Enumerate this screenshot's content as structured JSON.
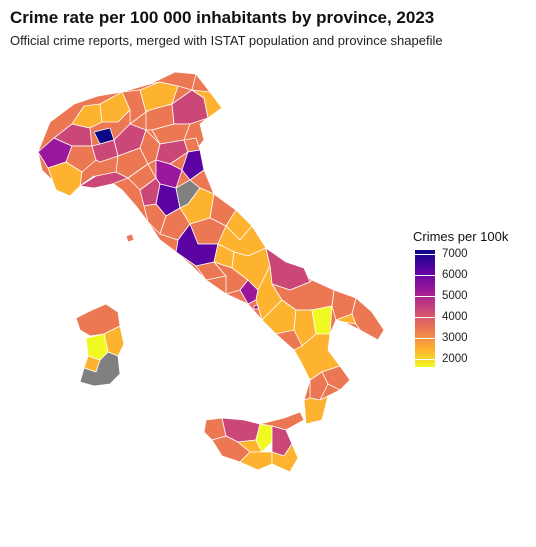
{
  "title": "Crime rate per 100 000 inhabitants by province, 2023",
  "subtitle": "Official crime reports, merged with ISTAT population and province shapefile",
  "legend": {
    "title": "Crimes per 100k",
    "ticks": [
      "7000",
      "6000",
      "5000",
      "4000",
      "3000",
      "2000"
    ]
  },
  "palette": {
    "c7000": "#0d0887",
    "c6000": "#5b02a3",
    "c5000": "#9a179b",
    "c4000": "#cb4778",
    "c3000": "#ec7853",
    "c2500": "#fdb32f",
    "c2000": "#f0f921",
    "missing": "#808080"
  }
}
